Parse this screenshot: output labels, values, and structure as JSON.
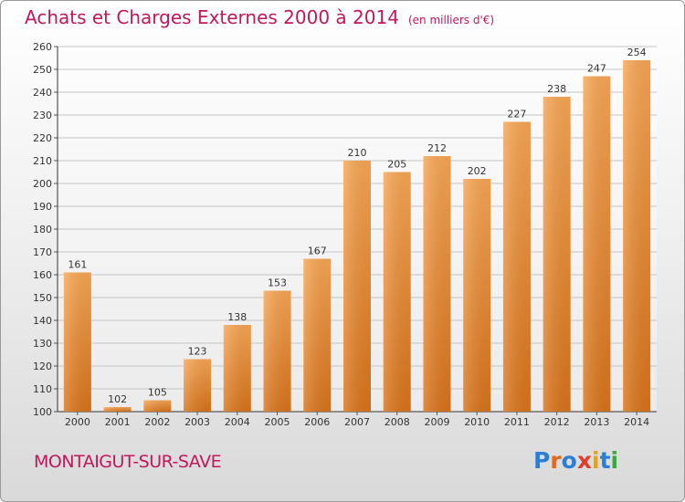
{
  "title": {
    "main": "Achats et Charges Externes 2000 à 2014",
    "unit": "(en milliers d'€)"
  },
  "commune": "MONTAIGUT-SUR-SAVE",
  "logo": {
    "text": "Proxiti",
    "letter_colors": [
      "#2a7fd4",
      "#e0681f",
      "#2a7fd4",
      "#e03c2a",
      "#e0a21f",
      "#2a7fd4",
      "#3aa83a"
    ]
  },
  "colors": {
    "accent": "#c2185b",
    "bar_top": "#f8a654",
    "bar_bottom": "#d9731a"
  },
  "chart_data": {
    "type": "bar",
    "title": "Achats et Charges Externes 2000 à 2014",
    "subtitle": "(en milliers d'€)",
    "categories": [
      "2000",
      "2001",
      "2002",
      "2003",
      "2004",
      "2005",
      "2006",
      "2007",
      "2008",
      "2009",
      "2010",
      "2011",
      "2012",
      "2013",
      "2014"
    ],
    "values": [
      161,
      102,
      105,
      123,
      138,
      153,
      167,
      210,
      205,
      212,
      202,
      227,
      238,
      247,
      254
    ],
    "ylim": [
      100,
      260
    ],
    "yticks": [
      100,
      110,
      120,
      130,
      140,
      150,
      160,
      170,
      180,
      190,
      200,
      210,
      220,
      230,
      240,
      250,
      260
    ],
    "grid": true,
    "legend": "none"
  }
}
